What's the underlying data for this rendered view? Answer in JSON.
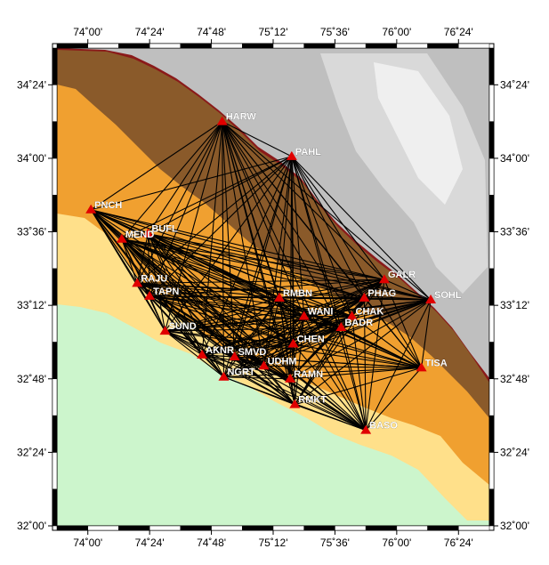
{
  "map": {
    "lon_range": [
      73.8,
      76.6
    ],
    "lat_range": [
      32.0,
      34.6
    ],
    "lon_ticks": [
      "74˚00'",
      "74˚24'",
      "74˚48'",
      "75˚12'",
      "75˚36'",
      "76˚00'",
      "76˚24'"
    ],
    "lat_ticks": [
      "32˚00'",
      "32˚24'",
      "32˚48'",
      "33˚12'",
      "33˚36'",
      "34˚00'",
      "34˚24'"
    ],
    "colors": {
      "plains": "#ccf5cc",
      "foothills": "#ffe08a",
      "orange": "#f0a030",
      "brown": "#8a5a2a",
      "ridge_red": "#8a1a1a",
      "high_grey": "#bfbfbf",
      "marker": "#e00000",
      "baseline": "#000000"
    },
    "stations": [
      {
        "id": "HARW",
        "lon": 74.87,
        "lat": 34.2
      },
      {
        "id": "PAHL",
        "lon": 75.32,
        "lat": 34.01
      },
      {
        "id": "PNCH",
        "lon": 74.02,
        "lat": 33.72
      },
      {
        "id": "BUFL",
        "lon": 74.39,
        "lat": 33.59
      },
      {
        "id": "MEND",
        "lon": 74.22,
        "lat": 33.56
      },
      {
        "id": "RAJU",
        "lon": 74.32,
        "lat": 33.32
      },
      {
        "id": "TAPN",
        "lon": 74.4,
        "lat": 33.25
      },
      {
        "id": "SUND",
        "lon": 74.5,
        "lat": 33.06
      },
      {
        "id": "AKNR",
        "lon": 74.74,
        "lat": 32.93
      },
      {
        "id": "SMVD",
        "lon": 74.95,
        "lat": 32.92
      },
      {
        "id": "NGRT",
        "lon": 74.88,
        "lat": 32.81
      },
      {
        "id": "UDHM",
        "lon": 75.14,
        "lat": 32.87
      },
      {
        "id": "RAMN",
        "lon": 75.31,
        "lat": 32.8
      },
      {
        "id": "RMKT",
        "lon": 75.34,
        "lat": 32.66
      },
      {
        "id": "BASO",
        "lon": 75.8,
        "lat": 32.52
      },
      {
        "id": "RMBN",
        "lon": 75.24,
        "lat": 33.24
      },
      {
        "id": "WANI",
        "lon": 75.4,
        "lat": 33.14
      },
      {
        "id": "CHEN",
        "lon": 75.33,
        "lat": 32.99
      },
      {
        "id": "CHAK",
        "lon": 75.71,
        "lat": 33.14
      },
      {
        "id": "BADR",
        "lon": 75.64,
        "lat": 33.08
      },
      {
        "id": "PHAG",
        "lon": 75.79,
        "lat": 33.24
      },
      {
        "id": "GALR",
        "lon": 75.92,
        "lat": 33.34
      },
      {
        "id": "SOHL",
        "lon": 76.22,
        "lat": 33.23
      },
      {
        "id": "TISA",
        "lon": 76.16,
        "lat": 32.86
      }
    ]
  }
}
